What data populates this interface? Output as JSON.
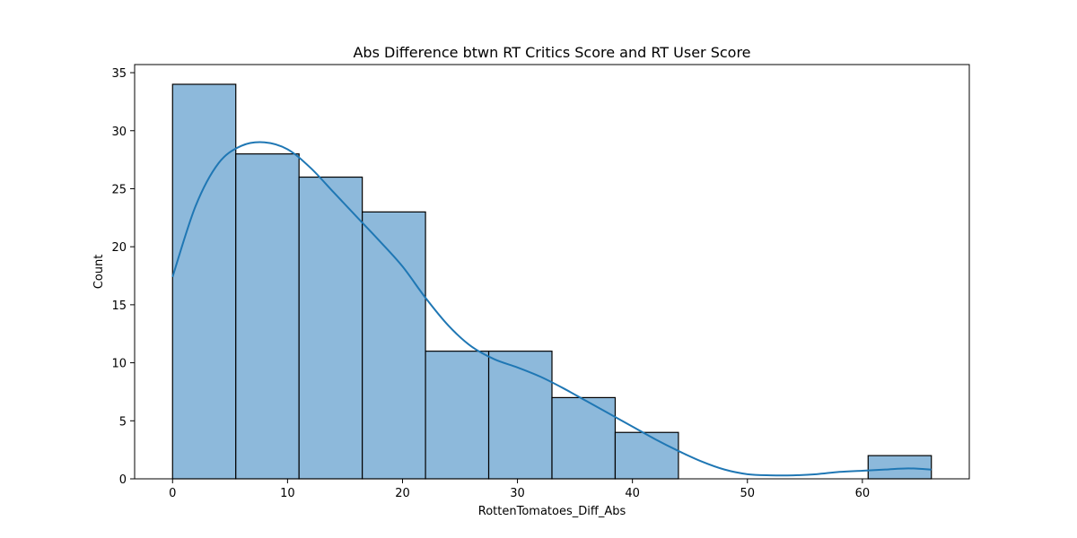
{
  "chart_data": {
    "type": "bar",
    "title": "Abs Difference btwn RT Critics Score and RT User Score",
    "xlabel": "RottenTomatoes_Diff_Abs",
    "ylabel": "Count",
    "xlim": [
      -3.3,
      69.3
    ],
    "ylim": [
      0,
      35.7
    ],
    "xticks": [
      0,
      10,
      20,
      30,
      40,
      50,
      60
    ],
    "yticks": [
      0,
      5,
      10,
      15,
      20,
      25,
      30,
      35
    ],
    "bin_edges": [
      0,
      5.5,
      11,
      16.5,
      22,
      27.5,
      33,
      38.5,
      44,
      49.5,
      55,
      60.5,
      66
    ],
    "values": [
      34,
      28,
      26,
      23,
      11,
      11,
      7,
      4,
      0,
      0,
      0,
      2
    ],
    "kde": {
      "x": [
        0,
        2,
        4,
        6,
        8,
        10,
        12,
        14,
        16,
        18,
        20,
        22,
        24,
        26,
        28,
        30,
        32,
        34,
        36,
        38,
        40,
        42,
        44,
        46,
        48,
        50,
        52,
        54,
        56,
        58,
        60,
        62,
        64,
        66
      ],
      "y": [
        17.4,
        23.5,
        27.2,
        28.7,
        29.0,
        28.4,
        26.8,
        24.7,
        22.6,
        20.5,
        18.3,
        15.6,
        13.2,
        11.4,
        10.3,
        9.6,
        8.8,
        7.8,
        6.7,
        5.6,
        4.5,
        3.4,
        2.4,
        1.5,
        0.8,
        0.4,
        0.3,
        0.3,
        0.4,
        0.6,
        0.7,
        0.8,
        0.9,
        0.8
      ]
    },
    "grid": false,
    "colors": {
      "bar_fill": "#8db9db",
      "bar_edge": "#000000",
      "kde_line": "#1f77b4"
    }
  }
}
